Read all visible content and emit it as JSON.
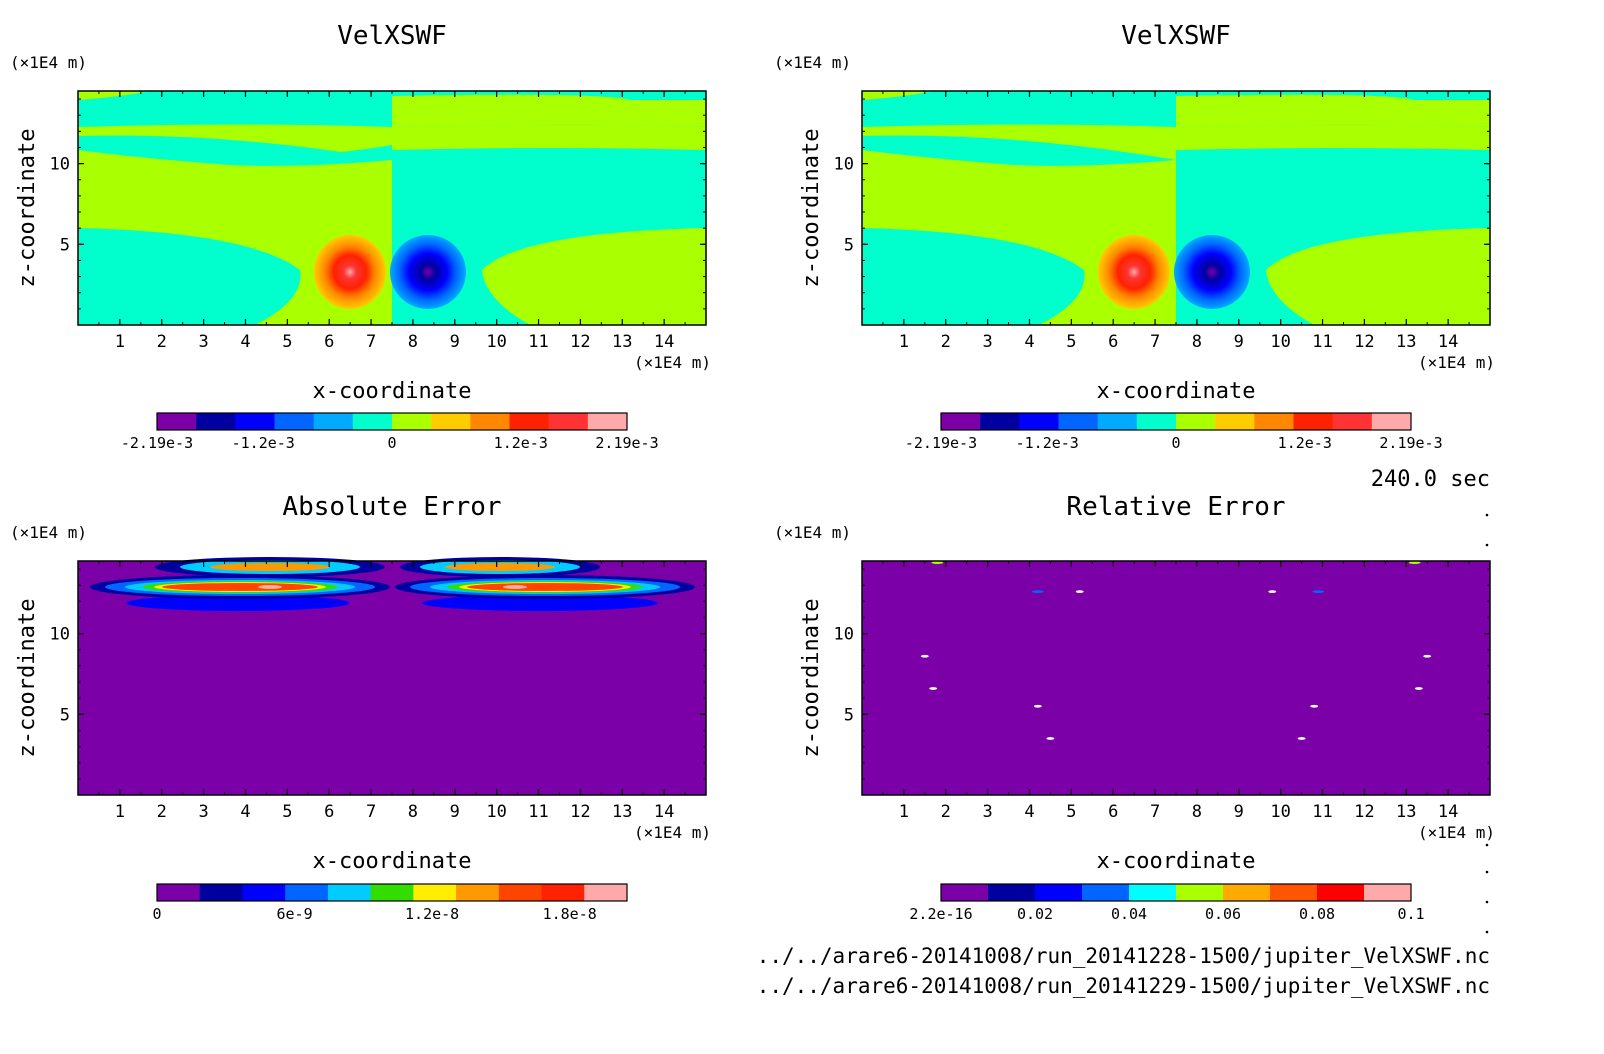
{
  "chart_data": [
    {
      "type": "heatmap",
      "title": "VelXSWF",
      "xlabel": "x-coordinate",
      "ylabel": "z-coordinate",
      "x_unit": "(×1E4 m)",
      "y_unit": "(×1E4 m)",
      "xlim": [
        0,
        15
      ],
      "ylim": [
        0,
        14.5
      ],
      "xticks": [
        "1",
        "2",
        "3",
        "4",
        "5",
        "6",
        "7",
        "8",
        "9",
        "10",
        "11",
        "12",
        "13",
        "14"
      ],
      "yticks": [
        "5",
        "10"
      ],
      "field": {
        "kind": "dipole",
        "features": [
          {
            "x": 6.7,
            "z": 3.1,
            "value": 0.00219,
            "label": "positive vortex"
          },
          {
            "x": 8.3,
            "z": 3.1,
            "value": -0.00219,
            "label": "negative vortex"
          }
        ],
        "background_values": [
          0,
          0.0001
        ]
      },
      "colorbar": {
        "min": -0.00219,
        "max": 0.00219,
        "tick_labels": [
          "-2.19e-3",
          "-1.2e-3",
          "0",
          "1.2e-3",
          "2.19e-3"
        ],
        "tick_values": [
          -0.00219,
          -0.0012,
          0,
          0.0012,
          0.00219
        ],
        "colors": [
          "#7b00a8",
          "#0000a0",
          "#0000ff",
          "#0066ff",
          "#00aaff",
          "#00ffcc",
          "#aaff00",
          "#ffcc00",
          "#ff8800",
          "#ff2200",
          "#ff3333",
          "#ffaaaa"
        ]
      }
    },
    {
      "type": "heatmap",
      "title": "VelXSWF",
      "xlabel": "x-coordinate",
      "ylabel": "z-coordinate",
      "x_unit": "(×1E4 m)",
      "y_unit": "(×1E4 m)",
      "xlim": [
        0,
        15
      ],
      "ylim": [
        0,
        14.5
      ],
      "xticks": [
        "1",
        "2",
        "3",
        "4",
        "5",
        "6",
        "7",
        "8",
        "9",
        "10",
        "11",
        "12",
        "13",
        "14"
      ],
      "yticks": [
        "5",
        "10"
      ],
      "field": {
        "kind": "dipole",
        "features": [
          {
            "x": 6.7,
            "z": 3.1,
            "value": 0.00219,
            "label": "positive vortex"
          },
          {
            "x": 8.3,
            "z": 3.1,
            "value": -0.00219,
            "label": "negative vortex"
          }
        ],
        "background_values": [
          0,
          0.0001
        ]
      },
      "colorbar": {
        "min": -0.00219,
        "max": 0.00219,
        "tick_labels": [
          "-2.19e-3",
          "-1.2e-3",
          "0",
          "1.2e-3",
          "2.19e-3"
        ],
        "tick_values": [
          -0.00219,
          -0.0012,
          0,
          0.0012,
          0.00219
        ],
        "colors": [
          "#7b00a8",
          "#0000a0",
          "#0000ff",
          "#0066ff",
          "#00aaff",
          "#00ffcc",
          "#aaff00",
          "#ffcc00",
          "#ff8800",
          "#ff2200",
          "#ff3333",
          "#ffaaaa"
        ]
      }
    },
    {
      "type": "heatmap",
      "title": "Absolute Error",
      "xlabel": "x-coordinate",
      "ylabel": "z-coordinate",
      "x_unit": "(×1E4 m)",
      "y_unit": "(×1E4 m)",
      "xlim": [
        0,
        15
      ],
      "ylim": [
        0,
        14.5
      ],
      "xticks": [
        "1",
        "2",
        "3",
        "4",
        "5",
        "6",
        "7",
        "8",
        "9",
        "10",
        "11",
        "12",
        "13",
        "14"
      ],
      "yticks": [
        "5",
        "10"
      ],
      "field": {
        "kind": "upper-bands",
        "features": [
          {
            "x": 4.9,
            "z": 13.3,
            "value": 2e-08,
            "label": "left band"
          },
          {
            "x": 10.1,
            "z": 13.3,
            "value": 2e-08,
            "label": "right band"
          }
        ],
        "background_values": [
          0
        ]
      },
      "colorbar": {
        "min": 0,
        "max": 2.05e-08,
        "tick_labels": [
          "0",
          "6e-9",
          "1.2e-8",
          "1.8e-8"
        ],
        "tick_values": [
          0,
          6e-09,
          1.2e-08,
          1.8e-08
        ],
        "colors": [
          "#7b00a8",
          "#0000a0",
          "#0000ff",
          "#0066ff",
          "#00ccff",
          "#33dd00",
          "#ffee00",
          "#ff9900",
          "#ff4400",
          "#ff2200",
          "#ffaaaa"
        ]
      }
    },
    {
      "type": "heatmap",
      "title": "Relative Error",
      "xlabel": "x-coordinate",
      "ylabel": "z-coordinate",
      "x_unit": "(×1E4 m)",
      "y_unit": "(×1E4 m)",
      "xlim": [
        0,
        15
      ],
      "ylim": [
        0,
        14.5
      ],
      "xticks": [
        "1",
        "2",
        "3",
        "4",
        "5",
        "6",
        "7",
        "8",
        "9",
        "10",
        "11",
        "12",
        "13",
        "14"
      ],
      "yticks": [
        "5",
        "10"
      ],
      "field": {
        "kind": "sparse-specks",
        "features": [
          {
            "x": 5.2,
            "z": 12.6,
            "value": 0.1
          },
          {
            "x": 9.8,
            "z": 12.6,
            "value": 0.1
          },
          {
            "x": 4.2,
            "z": 12.6,
            "value": 0.02
          },
          {
            "x": 10.9,
            "z": 12.6,
            "value": 0.02
          },
          {
            "x": 1.5,
            "z": 8.6,
            "value": 0.1
          },
          {
            "x": 13.5,
            "z": 8.6,
            "value": 0.1
          },
          {
            "x": 1.7,
            "z": 6.6,
            "value": 0.1
          },
          {
            "x": 13.3,
            "z": 6.6,
            "value": 0.1
          },
          {
            "x": 4.2,
            "z": 5.5,
            "value": 0.1
          },
          {
            "x": 10.8,
            "z": 5.5,
            "value": 0.1
          },
          {
            "x": 4.5,
            "z": 3.5,
            "value": 0.1
          },
          {
            "x": 10.5,
            "z": 3.5,
            "value": 0.1
          },
          {
            "x": 1.8,
            "z": 14.4,
            "value": 0.06
          },
          {
            "x": 13.2,
            "z": 14.4,
            "value": 0.06
          }
        ],
        "background_values": [
          2.2e-16
        ]
      },
      "colorbar": {
        "min": 2.2e-16,
        "max": 0.1,
        "tick_labels": [
          "2.2e-16",
          "0.02",
          "0.04",
          "0.06",
          "0.08",
          "0.1"
        ],
        "tick_values": [
          2.2e-16,
          0.02,
          0.04,
          0.06,
          0.08,
          0.1
        ],
        "colors": [
          "#7b00a8",
          "#0000a0",
          "#0000ff",
          "#0066ff",
          "#00ffff",
          "#aaff00",
          "#ffaa00",
          "#ff5500",
          "#ff0000",
          "#ffaaaa"
        ]
      }
    }
  ],
  "annotations": {
    "time": "240.0 sec",
    "files": [
      "../../arare6-20141008/run_20141228-1500/jupiter_VelXSWF.nc",
      "../../arare6-20141008/run_20141229-1500/jupiter_VelXSWF.nc"
    ]
  }
}
